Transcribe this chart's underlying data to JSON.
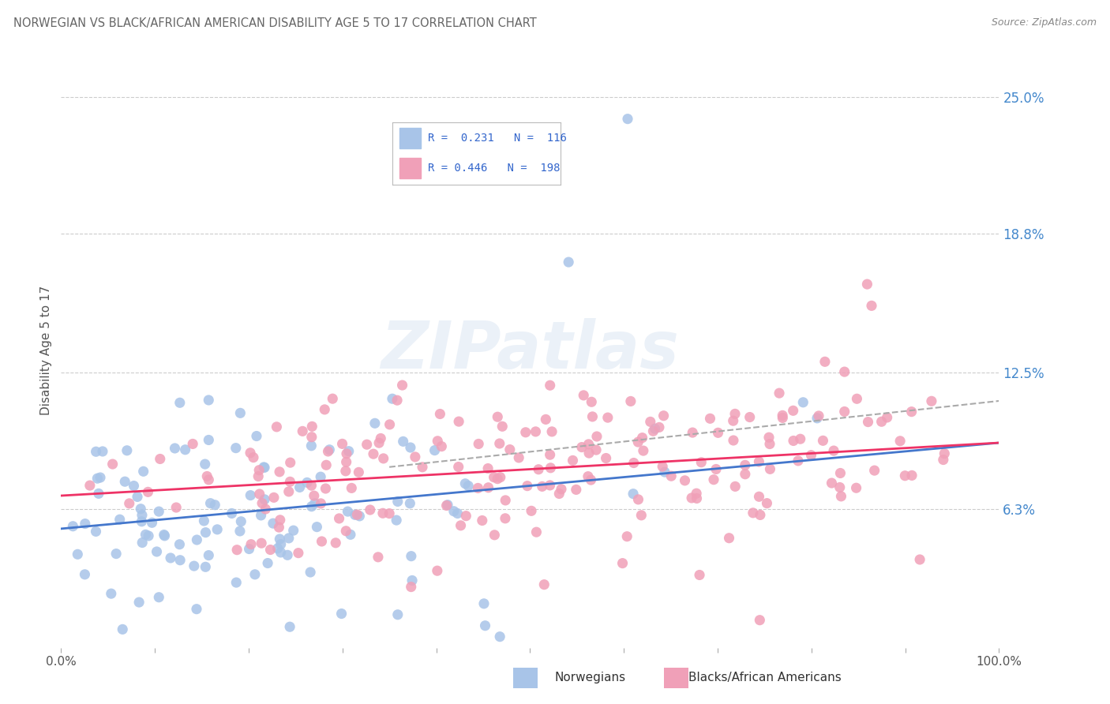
{
  "title": "NORWEGIAN VS BLACK/AFRICAN AMERICAN DISABILITY AGE 5 TO 17 CORRELATION CHART",
  "source": "Source: ZipAtlas.com",
  "ylabel": "Disability Age 5 to 17",
  "xlim": [
    0,
    1.0
  ],
  "ylim": [
    0.0,
    0.27
  ],
  "yticks": [
    0.063,
    0.125,
    0.188,
    0.25
  ],
  "ytick_labels": [
    "6.3%",
    "12.5%",
    "18.8%",
    "25.0%"
  ],
  "xticks": [
    0.0,
    1.0
  ],
  "xtick_labels": [
    "0.0%",
    "100.0%"
  ],
  "norwegian_color": "#a8c4e8",
  "black_color": "#f0a0b8",
  "norwegian_R": 0.231,
  "norwegian_N": 116,
  "black_R": 0.446,
  "black_N": 198,
  "legend_label_1": "Norwegians",
  "legend_label_2": "Blacks/African Americans",
  "background_color": "#ffffff",
  "grid_color": "#cccccc",
  "norw_line_color": "#4477cc",
  "black_line_color": "#ee3366",
  "dash_line_color": "#aaaaaa",
  "tick_label_color": "#4488cc",
  "title_color": "#666666",
  "source_color": "#888888",
  "watermark": "ZIPatlas",
  "norw_line_x": [
    0.0,
    1.0
  ],
  "norw_line_y": [
    0.054,
    0.093
  ],
  "black_line_x": [
    0.0,
    1.0
  ],
  "black_line_y": [
    0.069,
    0.093
  ],
  "dash_line_x": [
    0.35,
    1.0
  ],
  "dash_line_y": [
    0.082,
    0.112
  ]
}
